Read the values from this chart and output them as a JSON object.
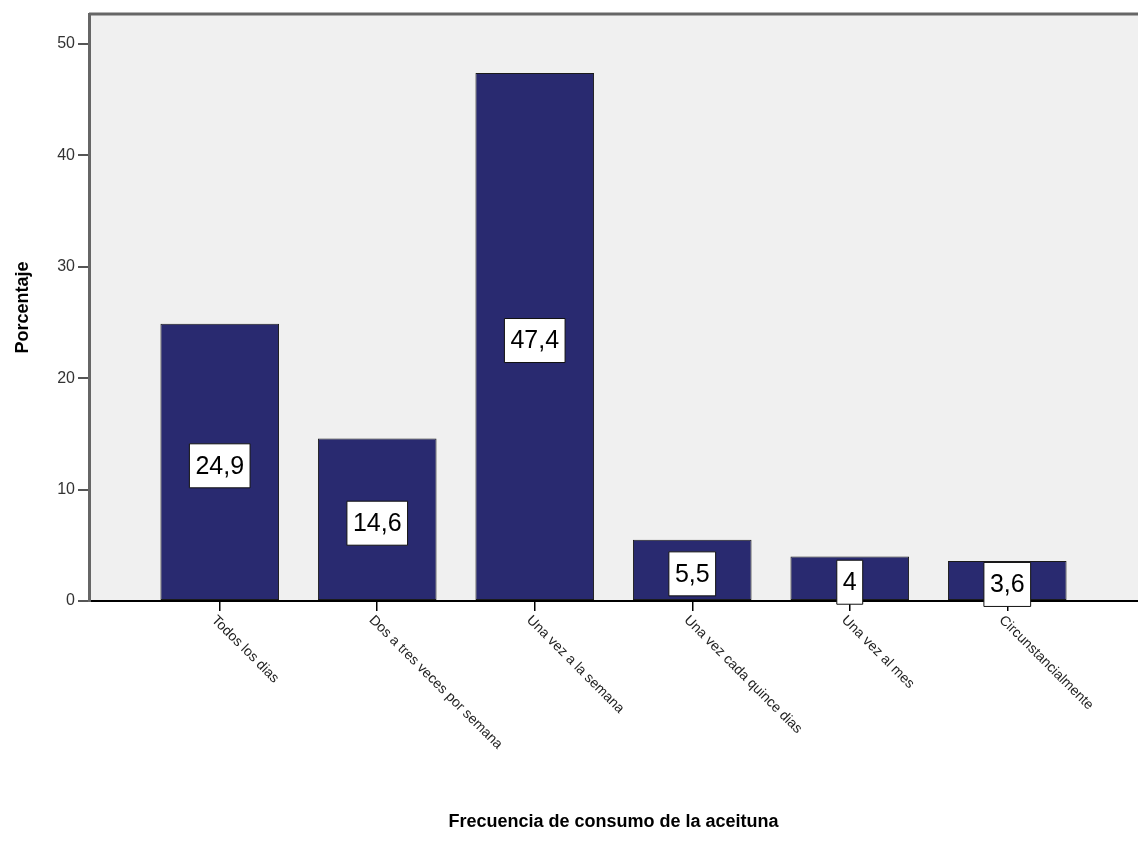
{
  "chart_data": {
    "type": "bar",
    "xlabel": "Frecuencia de consumo de la aceituna",
    "ylabel": "Porcentaje",
    "categories": [
      "Todos los dias",
      "Dos a tres veces por semana",
      "Una vez a la semana",
      "Una vez cada quince dias",
      "Una vez al mes",
      "Circunstancialmente"
    ],
    "values": [
      24.9,
      14.6,
      47.4,
      5.5,
      4,
      3.6
    ],
    "value_labels": [
      "24,9",
      "14,6",
      "47,4",
      "5,5",
      "4",
      "3,6"
    ],
    "color": "#292a70",
    "ylim": [
      0,
      52.7
    ],
    "yticks": [
      0,
      10,
      20,
      30,
      40,
      50
    ]
  }
}
